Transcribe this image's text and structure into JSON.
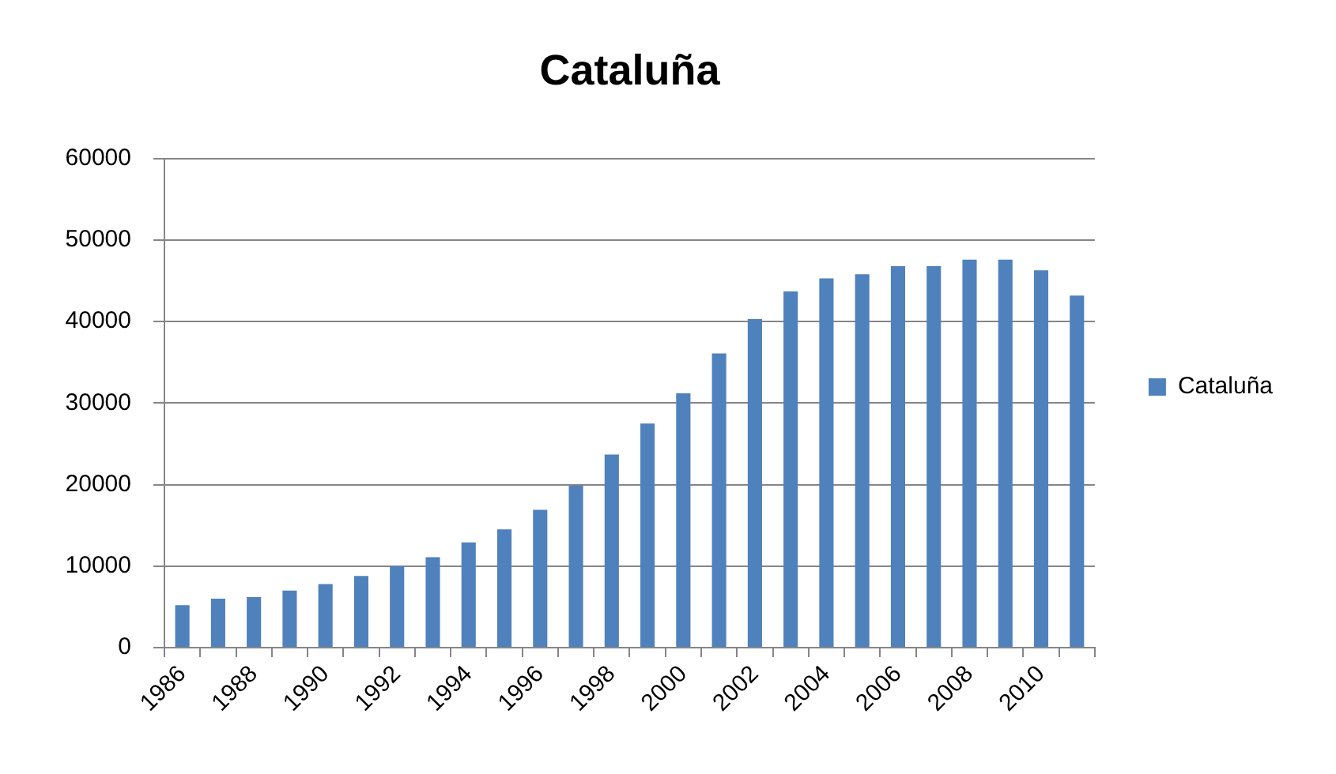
{
  "chart_data": {
    "type": "bar",
    "title": "Cataluña",
    "categories": [
      "1986",
      null,
      "1988",
      null,
      "1990",
      null,
      "1992",
      null,
      "1994",
      null,
      "1996",
      null,
      "1998",
      null,
      "2000",
      null,
      "2002",
      null,
      "2004",
      null,
      "2006",
      null,
      "2008",
      null,
      "2010",
      null
    ],
    "series": [
      {
        "name": "Cataluña",
        "color": "#4f81bd",
        "values": [
          5200,
          6000,
          6200,
          7000,
          7800,
          8800,
          10000,
          11100,
          12900,
          14500,
          16900,
          19900,
          23700,
          27500,
          31200,
          36100,
          40300,
          43700,
          45300,
          45800,
          46800,
          46800,
          47600,
          47600,
          46300,
          43200
        ]
      }
    ],
    "ylim": [
      0,
      60000
    ],
    "yticks": [
      0,
      10000,
      20000,
      30000,
      40000,
      50000,
      60000
    ],
    "grid": "y",
    "legend": "right"
  }
}
